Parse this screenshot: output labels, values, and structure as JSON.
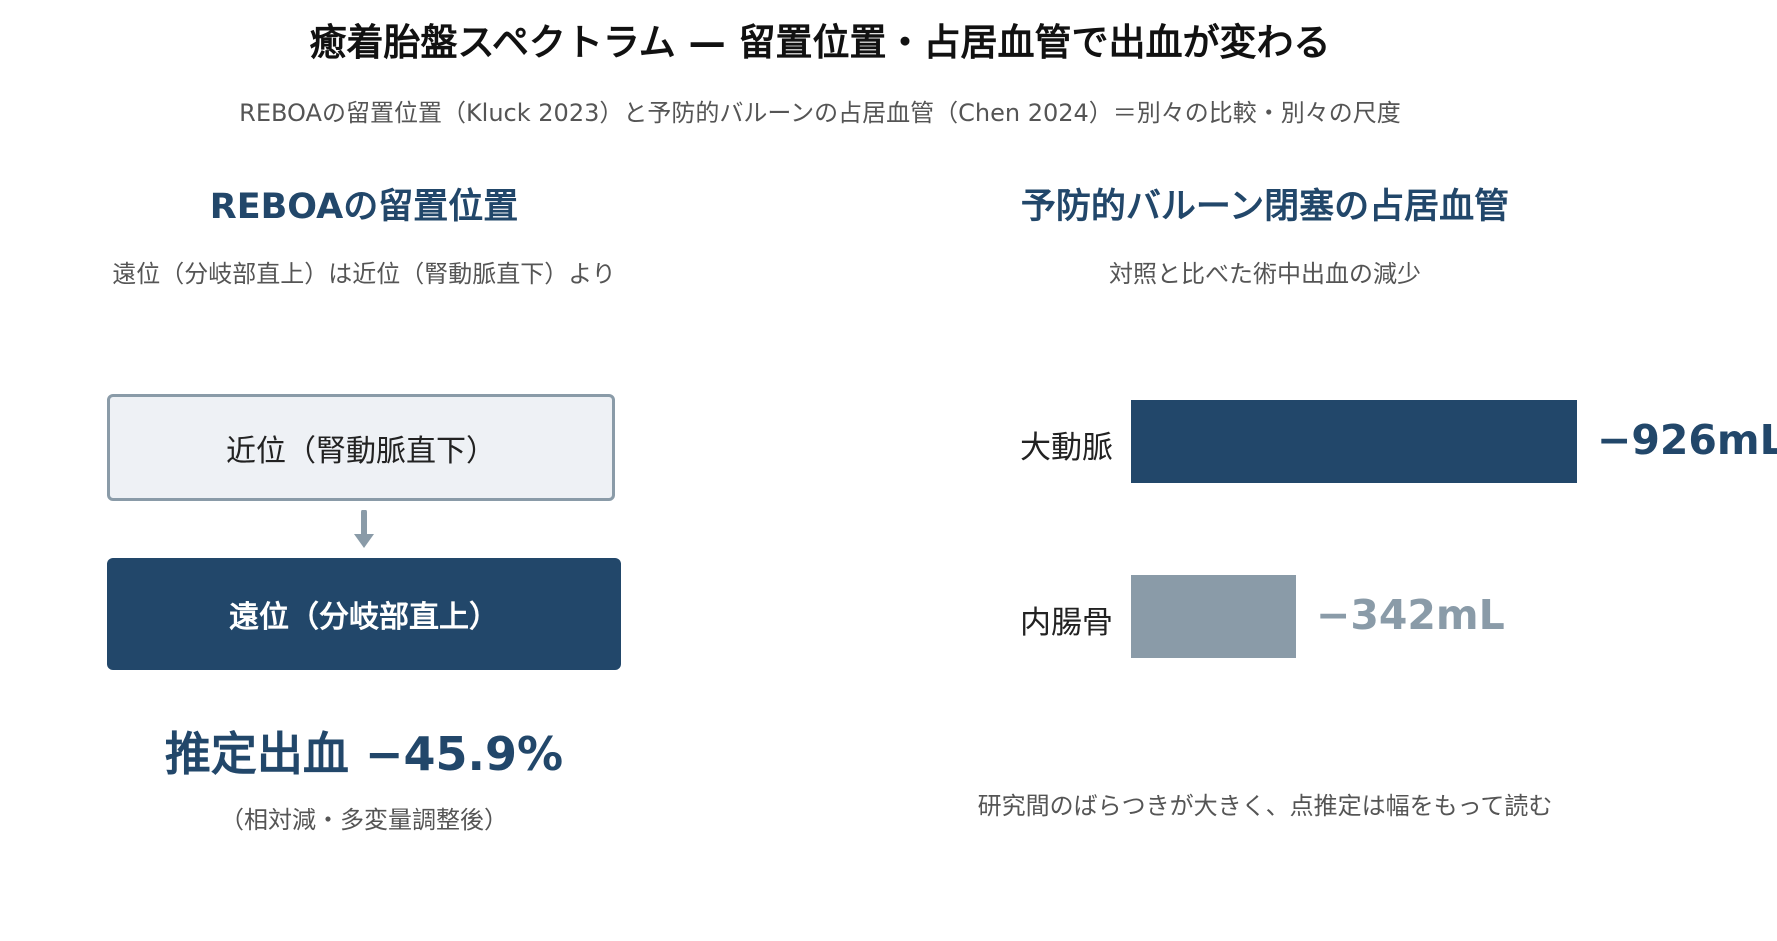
{
  "header": {
    "title": "癒着胎盤スペクトラム — 留置位置・占居血管で出血が変わる",
    "subtitle": "REBOAの留置位置（Kluck 2023）と予防的バルーンの占居血管（Chen 2024）＝別々の比較・別々の尺度"
  },
  "left_panel": {
    "title": "REBOAの留置位置",
    "subtitle": "遠位（分岐部直上）は近位（腎動脈直下）より",
    "box_proximal": "近位（腎動脈直下）",
    "box_distal": "遠位（分岐部直上）",
    "estimate": "推定出血 −45.9%",
    "estimate_note": "（相対減・多変量調整後）"
  },
  "right_panel": {
    "title": "予防的バルーン閉塞の占居血管",
    "subtitle": "対照と比べた術中出血の減少",
    "footnote": "研究間のばらつきが大きく、点推定は幅をもって読む"
  },
  "chart_data": {
    "type": "bar",
    "orientation": "horizontal",
    "categories": [
      "大動脈",
      "内腸骨"
    ],
    "values": [
      926,
      342
    ],
    "value_labels": [
      "−926mL",
      "−342mL"
    ],
    "colors": [
      "#22476a",
      "#8a9ba8"
    ]
  },
  "colors": {
    "accent": "#22476a",
    "muted": "#8a9ba8",
    "box_fill": "#eef1f5"
  }
}
